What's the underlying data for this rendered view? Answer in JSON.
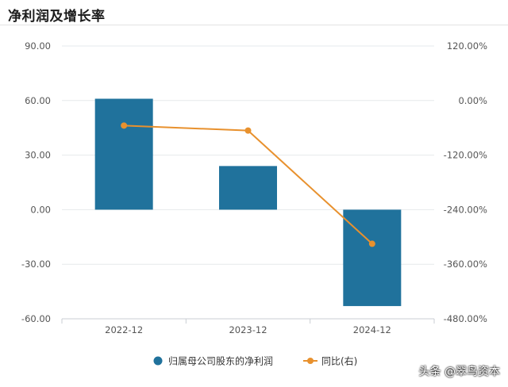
{
  "title": "净利润及增长率",
  "watermark": "头条 @翠鸟资本",
  "chart_data": {
    "type": "bar+line",
    "categories": [
      "2022-12",
      "2023-12",
      "2024-12"
    ],
    "series": [
      {
        "name": "归属母公司股东的净利润",
        "type": "bar",
        "axis": "left",
        "color": "#20729c",
        "values": [
          61.0,
          24.0,
          -53.0
        ]
      },
      {
        "name": "同比(右)",
        "type": "line",
        "axis": "right",
        "color": "#e8912e",
        "values": [
          -55.0,
          -66.0,
          -315.0
        ]
      }
    ],
    "y_left": {
      "ylim": [
        -60,
        90
      ],
      "ticks": [
        90,
        60,
        30,
        0,
        -30,
        -60
      ],
      "tick_labels": [
        "90.00",
        "60.00",
        "30.00",
        "0.00",
        "-30.00",
        "-60.00"
      ]
    },
    "y_right": {
      "ylim": [
        -480,
        120
      ],
      "ticks": [
        120,
        0,
        -120,
        -240,
        -360,
        -480
      ],
      "tick_labels": [
        "120.00%",
        "0.00%",
        "-120.00%",
        "-240.00%",
        "-360.00%",
        "-480.00%"
      ]
    },
    "grid": true,
    "legend_position": "bottom-center"
  }
}
